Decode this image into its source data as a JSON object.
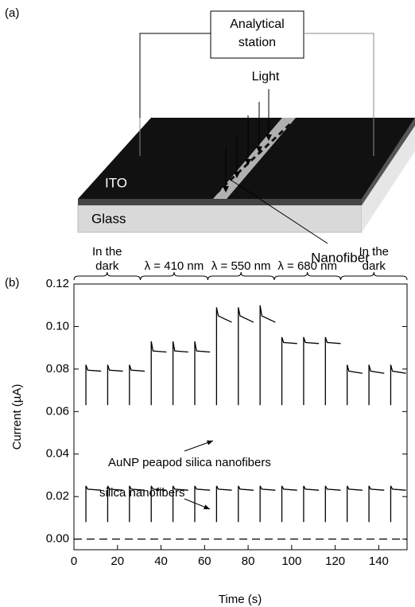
{
  "diagram": {
    "panel_label": "(a)",
    "station": [
      "Analytical",
      "station"
    ],
    "light": "Light",
    "ito": "ITO",
    "glass": "Glass",
    "nanofiber": "Nanofiber"
  },
  "chart_data": {
    "type": "line",
    "panel_label": "(b)",
    "x_label": "Time (s)",
    "y_label": "Current (µA)",
    "xlim": [
      0,
      153
    ],
    "ylim": [
      -0.005,
      0.12
    ],
    "xticks": [
      0,
      20,
      40,
      60,
      80,
      100,
      120,
      140
    ],
    "yticks": [
      {
        "value": 0,
        "label": "0.00"
      },
      {
        "value": 0.02,
        "label": "0.02"
      },
      {
        "value": 0.04,
        "label": "0.04"
      },
      {
        "value": 0.06,
        "label": "0.06"
      },
      {
        "value": 0.08,
        "label": "0.08"
      },
      {
        "value": 0.1,
        "label": "0.10"
      },
      {
        "value": 0.12,
        "label": "0.12"
      }
    ],
    "regions": [
      {
        "label": [
          "In the",
          "dark"
        ],
        "range": [
          0,
          30.5
        ]
      },
      {
        "label": [
          "λ = 410 nm"
        ],
        "range": [
          30.5,
          61.5
        ]
      },
      {
        "label": [
          "λ = 550 nm"
        ],
        "range": [
          61.5,
          92
        ]
      },
      {
        "label": [
          "λ = 680 nm"
        ],
        "range": [
          92,
          122.5
        ]
      },
      {
        "label": [
          "In the",
          "dark"
        ],
        "range": [
          122.5,
          153
        ]
      }
    ],
    "x": [
      5.5,
      5.5,
      6.3,
      12.5,
      12.5,
      15.5,
      15.5,
      16.3,
      22.5,
      22.5,
      25.5,
      25.5,
      26.3,
      32.5,
      32.5,
      35.5,
      35.5,
      36.3,
      42.5,
      42.5,
      45.5,
      45.5,
      46.3,
      52.5,
      52.5,
      55.5,
      55.5,
      56.3,
      62.5,
      62.5,
      65.5,
      65.5,
      66.3,
      72.5,
      72.5,
      75.5,
      75.5,
      76.3,
      82.5,
      82.5,
      85.5,
      85.5,
      86.3,
      92.5,
      92.5,
      95.5,
      95.5,
      96.3,
      102.5,
      102.5,
      105.5,
      105.5,
      106.3,
      112.5,
      112.5,
      115.5,
      115.5,
      116.3,
      122.5,
      122.5,
      125.5,
      125.5,
      126.3,
      132.5,
      132.5,
      135.5,
      135.5,
      136.3,
      142.5,
      142.5,
      145.5,
      145.5,
      146.3,
      152.5,
      152.5
    ],
    "series": [
      {
        "name": "AuNP peapod silica nanofibers",
        "color": "#000000",
        "values": [
          0.063,
          0.082,
          0.0795,
          0.079,
          null,
          0.063,
          0.082,
          0.0795,
          0.079,
          null,
          0.063,
          0.082,
          0.0795,
          0.079,
          null,
          0.063,
          0.093,
          0.0885,
          0.088,
          null,
          0.063,
          0.093,
          0.0885,
          0.088,
          null,
          0.063,
          0.093,
          0.0885,
          0.088,
          null,
          0.063,
          0.109,
          0.105,
          0.102,
          null,
          0.063,
          0.109,
          0.105,
          0.102,
          null,
          0.063,
          0.11,
          0.105,
          0.102,
          null,
          0.063,
          0.095,
          0.0925,
          0.092,
          null,
          0.063,
          0.095,
          0.0925,
          0.092,
          null,
          0.063,
          0.095,
          0.0925,
          0.092,
          null,
          0.063,
          0.082,
          0.079,
          0.078,
          null,
          0.063,
          0.082,
          0.079,
          0.078,
          null,
          0.063,
          0.082,
          0.079,
          0.078,
          null
        ]
      },
      {
        "name": "silica nanofibers",
        "color": "#000000",
        "values": [
          0.008,
          0.025,
          0.0235,
          0.023,
          null,
          0.008,
          0.025,
          0.0235,
          0.023,
          null,
          0.008,
          0.025,
          0.0235,
          0.023,
          null,
          0.008,
          0.025,
          0.0235,
          0.023,
          null,
          0.008,
          0.025,
          0.0235,
          0.023,
          null,
          0.008,
          0.025,
          0.0235,
          0.023,
          null,
          0.008,
          0.025,
          0.0235,
          0.023,
          null,
          0.008,
          0.025,
          0.0235,
          0.023,
          null,
          0.008,
          0.025,
          0.0235,
          0.023,
          null,
          0.008,
          0.025,
          0.0235,
          0.023,
          null,
          0.008,
          0.025,
          0.0235,
          0.023,
          null,
          0.008,
          0.025,
          0.0235,
          0.023,
          null,
          0.008,
          0.025,
          0.0235,
          0.023,
          null,
          0.008,
          0.025,
          0.0235,
          0.023,
          null,
          0.008,
          0.025,
          0.0235,
          0.023,
          null
        ]
      },
      {
        "color": "#000000",
        "dash": true,
        "x": [
          0,
          153
        ],
        "values": [
          0,
          0
        ]
      }
    ]
  }
}
